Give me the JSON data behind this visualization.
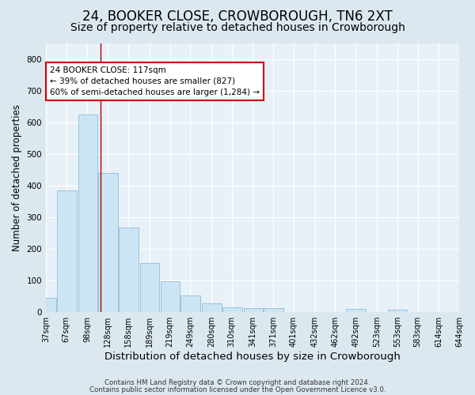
{
  "title1": "24, BOOKER CLOSE, CROWBOROUGH, TN6 2XT",
  "title2": "Size of property relative to detached houses in Crowborough",
  "xlabel": "Distribution of detached houses by size in Crowborough",
  "ylabel": "Number of detached properties",
  "footer1": "Contains HM Land Registry data © Crown copyright and database right 2024.",
  "footer2": "Contains public sector information licensed under the Open Government Licence v3.0.",
  "bins": [
    37,
    67,
    98,
    128,
    158,
    189,
    219,
    249,
    280,
    310,
    341,
    371,
    401,
    432,
    462,
    492,
    523,
    553,
    583,
    614,
    644
  ],
  "values": [
    45,
    385,
    625,
    440,
    268,
    155,
    97,
    52,
    27,
    15,
    12,
    11,
    0,
    0,
    0,
    9,
    0,
    8,
    0,
    0
  ],
  "bar_color": "#cce5f5",
  "bar_edge_color": "#90bcd8",
  "vline_x": 117,
  "vline_color": "#aa0000",
  "annotation_line1": "24 BOOKER CLOSE: 117sqm",
  "annotation_line2": "← 39% of detached houses are smaller (827)",
  "annotation_line3": "60% of semi-detached houses are larger (1,284) →",
  "annotation_box_color": "#ffffff",
  "annotation_box_edge_color": "#cc0000",
  "ylim": [
    0,
    850
  ],
  "yticks": [
    0,
    100,
    200,
    300,
    400,
    500,
    600,
    700,
    800
  ],
  "xlim_left": 37,
  "xlim_right": 644,
  "bg_color": "#dce8f0",
  "plot_bg_color": "#e8f0f8",
  "grid_color": "#ffffff",
  "title1_fontsize": 12,
  "title2_fontsize": 10,
  "xlabel_fontsize": 9.5,
  "ylabel_fontsize": 8.5,
  "tick_fontsize": 7.5,
  "annot_fontsize": 7.5
}
